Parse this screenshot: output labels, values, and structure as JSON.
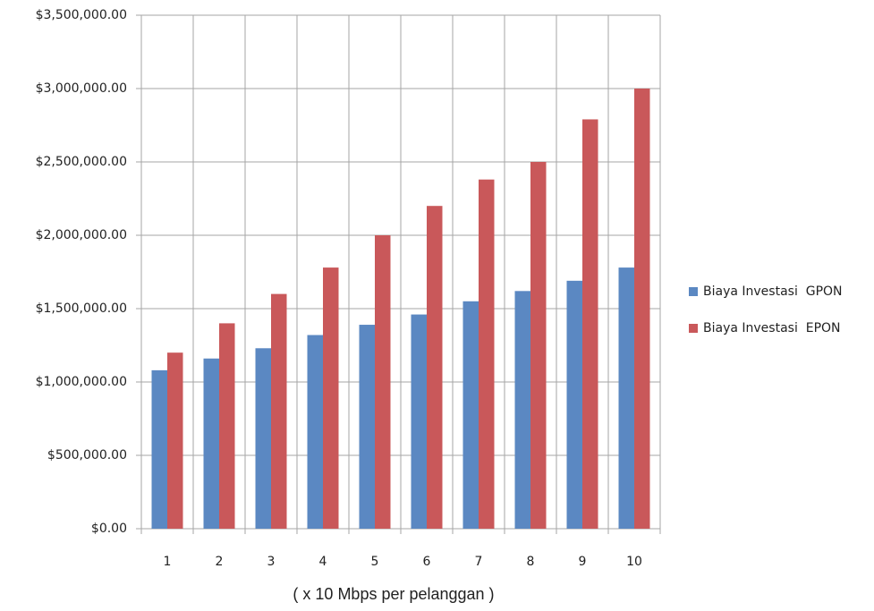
{
  "chart_data": {
    "type": "bar",
    "x_label": "( x 10 Mbps per pelanggan )",
    "categories": [
      "1",
      "2",
      "3",
      "4",
      "5",
      "6",
      "7",
      "8",
      "9",
      "10"
    ],
    "series": [
      {
        "name": "Biaya Investasi  GPON",
        "color": "#5b88c2",
        "values": [
          1080000,
          1160000,
          1230000,
          1320000,
          1390000,
          1460000,
          1550000,
          1620000,
          1690000,
          1780000
        ]
      },
      {
        "name": "Biaya Investasi  EPON",
        "color": "#c9585a",
        "values": [
          1200000,
          1400000,
          1600000,
          1780000,
          2000000,
          2200000,
          2380000,
          2500000,
          2790000,
          3000000
        ]
      }
    ],
    "ylim": [
      0,
      3500000
    ],
    "yticks": [
      {
        "value": 0,
        "label": "$0.00"
      },
      {
        "value": 500000,
        "label": "$500,000.00"
      },
      {
        "value": 1000000,
        "label": "$1,000,000.00"
      },
      {
        "value": 1500000,
        "label": "$1,500,000.00"
      },
      {
        "value": 2000000,
        "label": "$2,000,000.00"
      },
      {
        "value": 2500000,
        "label": "$2,500,000.00"
      },
      {
        "value": 3000000,
        "label": "$3,000,000.00"
      },
      {
        "value": 3500000,
        "label": "$3,500,000.00"
      }
    ],
    "grid": true,
    "legend": "right"
  }
}
